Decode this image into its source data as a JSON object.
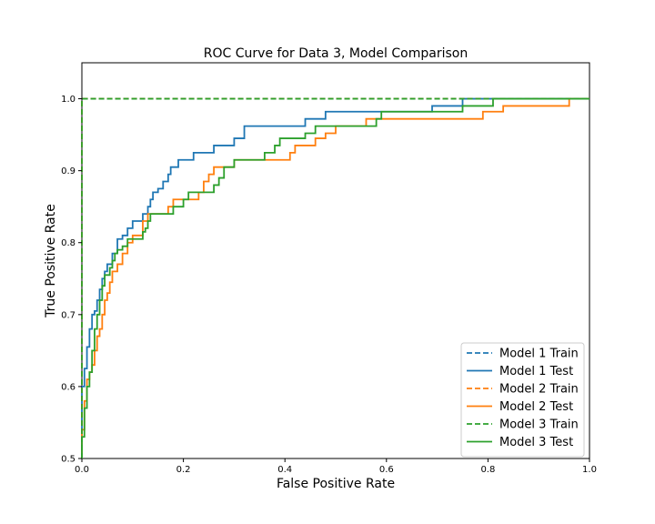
{
  "chart_data": {
    "type": "line",
    "title": "ROC Curve for Data 3, Model Comparison",
    "xlabel": "False Positive Rate",
    "ylabel": "True Positive Rate",
    "xlim": [
      0.0,
      1.0
    ],
    "ylim": [
      0.5,
      1.05
    ],
    "xticks": [
      0.0,
      0.2,
      0.4,
      0.6,
      0.8,
      1.0
    ],
    "xtick_labels": [
      "0.0",
      "0.2",
      "0.4",
      "0.6",
      "0.8",
      "1.0"
    ],
    "yticks": [
      0.5,
      0.6,
      0.7,
      0.8,
      0.9,
      1.0
    ],
    "ytick_labels": [
      "0.5",
      "0.6",
      "0.7",
      "0.8",
      "0.9",
      "1.0"
    ],
    "grid": false,
    "legend_position": "lower-right",
    "series": [
      {
        "name": "Model 1 Train",
        "color": "#1f77b4",
        "dash": true,
        "step": false,
        "x": [
          0.0,
          0.0,
          1.0
        ],
        "y": [
          0.5,
          1.0,
          1.0
        ]
      },
      {
        "name": "Model 1 Test",
        "color": "#1f77b4",
        "dash": false,
        "step": true,
        "x": [
          0.0,
          0.0,
          0.005,
          0.01,
          0.015,
          0.02,
          0.025,
          0.03,
          0.035,
          0.04,
          0.045,
          0.05,
          0.06,
          0.07,
          0.08,
          0.09,
          0.1,
          0.12,
          0.13,
          0.135,
          0.14,
          0.15,
          0.16,
          0.17,
          0.175,
          0.19,
          0.22,
          0.26,
          0.3,
          0.32,
          0.38,
          0.44,
          0.48,
          0.69,
          0.75,
          1.0
        ],
        "y": [
          0.5,
          0.6,
          0.625,
          0.655,
          0.68,
          0.7,
          0.705,
          0.72,
          0.735,
          0.75,
          0.76,
          0.77,
          0.785,
          0.805,
          0.81,
          0.82,
          0.83,
          0.84,
          0.85,
          0.86,
          0.87,
          0.875,
          0.885,
          0.895,
          0.905,
          0.915,
          0.925,
          0.935,
          0.945,
          0.962,
          0.962,
          0.972,
          0.982,
          0.99,
          1.0,
          1.0
        ]
      },
      {
        "name": "Model 2 Train",
        "color": "#ff7f0e",
        "dash": true,
        "step": false,
        "x": [
          0.0,
          0.0,
          1.0
        ],
        "y": [
          0.5,
          1.0,
          1.0
        ]
      },
      {
        "name": "Model 2 Test",
        "color": "#ff7f0e",
        "dash": false,
        "step": true,
        "x": [
          0.0,
          0.0,
          0.005,
          0.01,
          0.015,
          0.02,
          0.025,
          0.03,
          0.035,
          0.04,
          0.045,
          0.05,
          0.055,
          0.06,
          0.07,
          0.08,
          0.09,
          0.1,
          0.12,
          0.13,
          0.14,
          0.17,
          0.18,
          0.23,
          0.24,
          0.25,
          0.26,
          0.3,
          0.4,
          0.41,
          0.42,
          0.46,
          0.48,
          0.5,
          0.56,
          0.6,
          0.79,
          0.83,
          0.96,
          1.0
        ],
        "y": [
          0.5,
          0.54,
          0.58,
          0.61,
          0.62,
          0.63,
          0.65,
          0.67,
          0.68,
          0.7,
          0.72,
          0.73,
          0.745,
          0.76,
          0.77,
          0.785,
          0.8,
          0.81,
          0.83,
          0.84,
          0.84,
          0.85,
          0.86,
          0.87,
          0.885,
          0.895,
          0.905,
          0.915,
          0.915,
          0.925,
          0.935,
          0.945,
          0.952,
          0.962,
          0.972,
          0.972,
          0.982,
          0.99,
          1.0,
          1.0
        ]
      },
      {
        "name": "Model 3 Train",
        "color": "#2ca02c",
        "dash": true,
        "step": false,
        "x": [
          0.0,
          0.0,
          1.0
        ],
        "y": [
          0.5,
          1.0,
          1.0
        ]
      },
      {
        "name": "Model 3 Test",
        "color": "#2ca02c",
        "dash": false,
        "step": true,
        "x": [
          0.0,
          0.0,
          0.005,
          0.01,
          0.015,
          0.02,
          0.025,
          0.03,
          0.035,
          0.04,
          0.045,
          0.055,
          0.06,
          0.065,
          0.07,
          0.08,
          0.09,
          0.12,
          0.125,
          0.13,
          0.135,
          0.18,
          0.2,
          0.21,
          0.26,
          0.27,
          0.28,
          0.3,
          0.36,
          0.38,
          0.39,
          0.4,
          0.44,
          0.46,
          0.47,
          0.5,
          0.58,
          0.59,
          0.75,
          0.81,
          1.0
        ],
        "y": [
          0.5,
          0.53,
          0.57,
          0.6,
          0.62,
          0.65,
          0.68,
          0.7,
          0.72,
          0.74,
          0.755,
          0.765,
          0.775,
          0.785,
          0.79,
          0.795,
          0.805,
          0.815,
          0.82,
          0.83,
          0.84,
          0.85,
          0.86,
          0.87,
          0.88,
          0.89,
          0.905,
          0.915,
          0.925,
          0.935,
          0.945,
          0.945,
          0.952,
          0.962,
          0.962,
          0.962,
          0.972,
          0.982,
          0.99,
          1.0,
          1.0
        ]
      }
    ]
  }
}
